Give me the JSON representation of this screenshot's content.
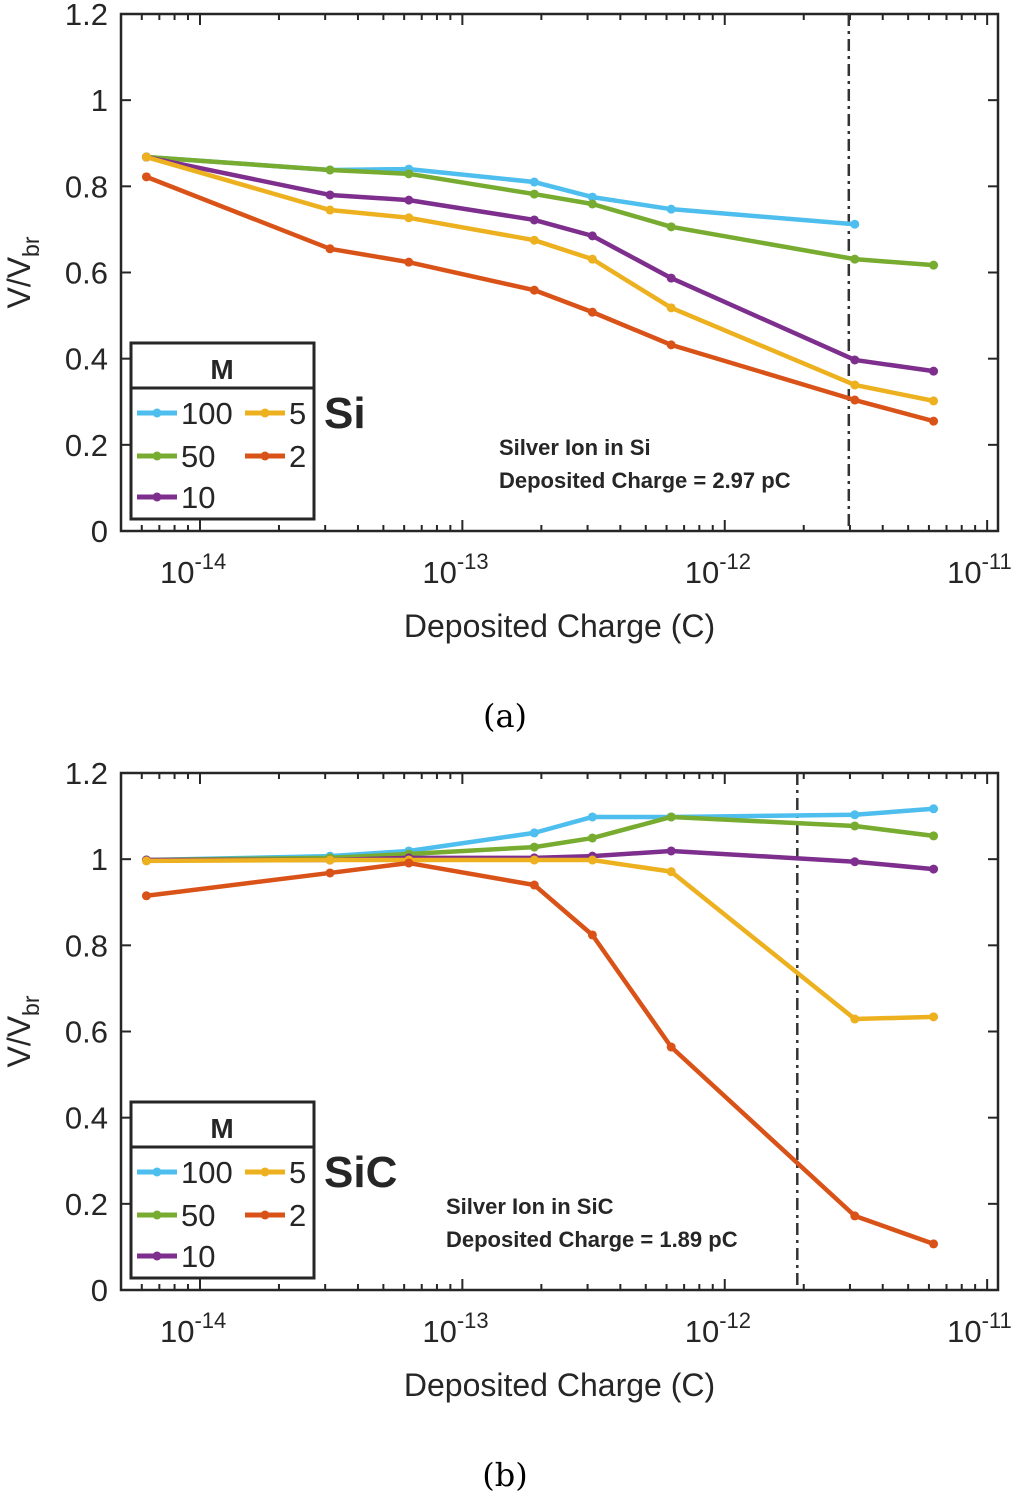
{
  "colors": {
    "100": "#4DBEEE",
    "50": "#77AC30",
    "10": "#7E2F8E",
    "5": "#EDB120",
    "2": "#D95319",
    "axis": "#262626",
    "refline": "#333333"
  },
  "chart_data": [
    {
      "type": "line",
      "panel_caption": "(a)",
      "xlabel": "Deposited Charge (C)",
      "ylabel": "V/V",
      "ylabel_sub": "br",
      "xscale": "log",
      "xlim": [
        5e-15,
        1.1e-11
      ],
      "ylim": [
        0,
        1.2
      ],
      "xticks": [
        {
          "base": "10",
          "exp": "-14",
          "value": 1e-14
        },
        {
          "base": "10",
          "exp": "-13",
          "value": 1e-13
        },
        {
          "base": "10",
          "exp": "-12",
          "value": 1e-12
        },
        {
          "base": "10",
          "exp": "-11",
          "value": 1e-11
        }
      ],
      "yticks": [
        {
          "label": "0",
          "value": 0
        },
        {
          "label": "0.2",
          "value": 0.2
        },
        {
          "label": "0.4",
          "value": 0.4
        },
        {
          "label": "0.6",
          "value": 0.6
        },
        {
          "label": "0.8",
          "value": 0.8
        },
        {
          "label": "1",
          "value": 1
        },
        {
          "label": "1.2",
          "value": 1.2
        }
      ],
      "grid": false,
      "legend_title": "M",
      "legend_placement": "bottom-left",
      "material_label": "Si",
      "annotation": [
        "Silver Ion in Si",
        "Deposited Charge = 2.97 pC"
      ],
      "reference_line_x": 2.97e-12,
      "x": [
        6.25e-15,
        3.13e-14,
        6.25e-14,
        1.88e-13,
        3.13e-13,
        6.25e-13,
        3.13e-12,
        6.25e-12
      ],
      "series": [
        {
          "name": "100",
          "values": [
            0.868,
            0.838,
            0.84,
            0.81,
            0.775,
            0.747,
            0.712,
            null
          ]
        },
        {
          "name": "50",
          "values": [
            0.868,
            0.838,
            0.829,
            0.782,
            0.759,
            0.706,
            0.631,
            0.617
          ]
        },
        {
          "name": "10",
          "values": [
            0.868,
            0.78,
            0.768,
            0.722,
            0.685,
            0.587,
            0.397,
            0.371
          ]
        },
        {
          "name": "5",
          "values": [
            0.868,
            0.745,
            0.727,
            0.675,
            0.631,
            0.518,
            0.339,
            0.302
          ]
        },
        {
          "name": "2",
          "values": [
            0.822,
            0.655,
            0.624,
            0.559,
            0.508,
            0.432,
            0.304,
            0.255
          ]
        }
      ]
    },
    {
      "type": "line",
      "panel_caption": "(b)",
      "xlabel": "Deposited Charge (C)",
      "ylabel": "V/V",
      "ylabel_sub": "br",
      "xscale": "log",
      "xlim": [
        5e-15,
        1.1e-11
      ],
      "ylim": [
        0,
        1.2
      ],
      "xticks": [
        {
          "base": "10",
          "exp": "-14",
          "value": 1e-14
        },
        {
          "base": "10",
          "exp": "-13",
          "value": 1e-13
        },
        {
          "base": "10",
          "exp": "-12",
          "value": 1e-12
        },
        {
          "base": "10",
          "exp": "-11",
          "value": 1e-11
        }
      ],
      "yticks": [
        {
          "label": "0",
          "value": 0
        },
        {
          "label": "0.2",
          "value": 0.2
        },
        {
          "label": "0.4",
          "value": 0.4
        },
        {
          "label": "0.6",
          "value": 0.6
        },
        {
          "label": "0.8",
          "value": 0.8
        },
        {
          "label": "1",
          "value": 1
        },
        {
          "label": "1.2",
          "value": 1.2
        }
      ],
      "grid": false,
      "legend_title": "M",
      "legend_placement": "bottom-left",
      "material_label": "SiC",
      "annotation": [
        "Silver Ion in SiC",
        "Deposited Charge = 1.89 pC"
      ],
      "reference_line_x": 1.89e-12,
      "x": [
        6.25e-15,
        3.13e-14,
        6.25e-14,
        1.88e-13,
        3.13e-13,
        6.25e-13,
        3.13e-12,
        6.25e-12
      ],
      "series": [
        {
          "name": "100",
          "values": [
            0.998,
            1.007,
            1.019,
            1.061,
            1.098,
            1.098,
            1.103,
            1.117
          ]
        },
        {
          "name": "50",
          "values": [
            0.998,
            1.003,
            1.012,
            1.028,
            1.049,
            1.098,
            1.077,
            1.054
          ]
        },
        {
          "name": "10",
          "values": [
            0.998,
            0.998,
            1.003,
            1.003,
            1.007,
            1.019,
            0.994,
            0.977
          ]
        },
        {
          "name": "5",
          "values": [
            0.996,
            0.998,
            0.998,
            0.998,
            0.998,
            0.971,
            0.629,
            0.634
          ]
        },
        {
          "name": "2",
          "values": [
            0.915,
            0.968,
            0.991,
            0.94,
            0.824,
            0.564,
            0.172,
            0.107
          ]
        }
      ]
    }
  ]
}
